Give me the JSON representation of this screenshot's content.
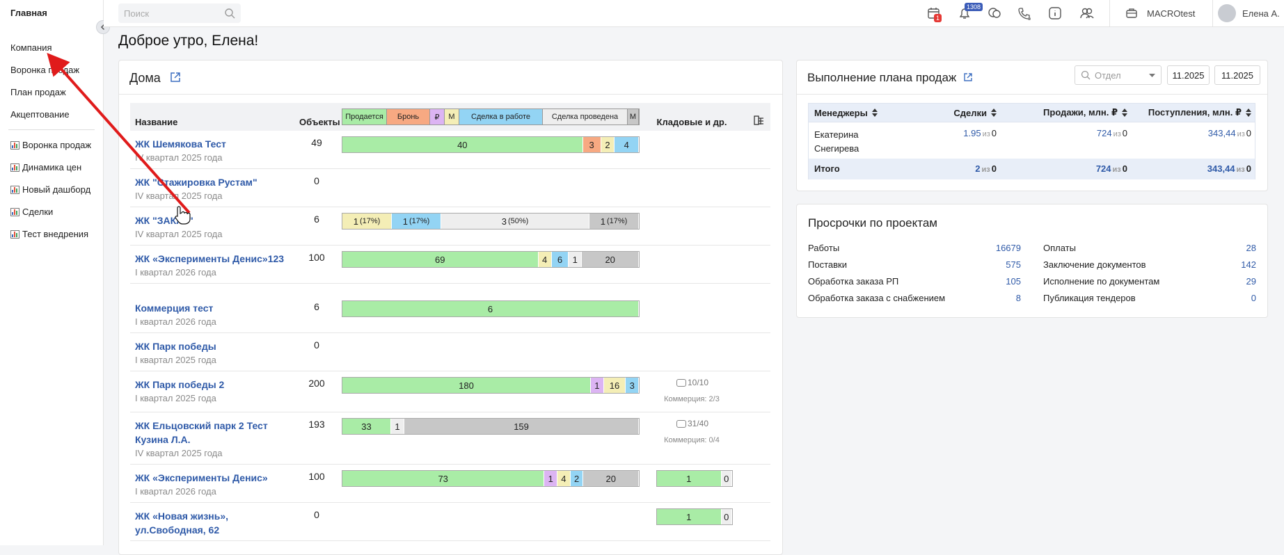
{
  "sidebar": {
    "home": "Главная",
    "menu": [
      "Компания",
      "Воронка продаж",
      "План продаж",
      "Акцептование"
    ],
    "reports": [
      "Воронка продаж",
      "Динамика цен",
      "Новый дашборд",
      "Сделки",
      "Тест внедрения"
    ]
  },
  "topbar": {
    "search": "Поиск",
    "calendar_badge": 1,
    "bell_badge": 1308,
    "company": "MACROtest",
    "user": "Елена А."
  },
  "greeting": "Доброе утро, Елена!",
  "houses": {
    "title": "Дома",
    "col_name": "Название",
    "col_objects": "Объекты",
    "col_storage": "Кладовые и др.",
    "legend": [
      {
        "name": "Продается",
        "color": "#a9eca6"
      },
      {
        "name": "Бронь",
        "color": "#f7a982"
      },
      {
        "name": "₽",
        "color": "#dcb4f3"
      },
      {
        "name": "М",
        "color": "#f4eeb6",
        "pattern": "hatch"
      },
      {
        "name": "Сделка в работе",
        "color": "#93d4f4"
      },
      {
        "name": "Сделка проведена",
        "color": "#eeeeee"
      },
      {
        "name": "М",
        "color": "#c7c7c7",
        "pattern": "hatch"
      }
    ],
    "rows": [
      {
        "name": "ЖК Шемякова Тест",
        "period": "IV квартал 2025 года",
        "objects": 49,
        "segments": [
          {
            "k": 0,
            "value": 40
          },
          {
            "k": 1,
            "value": 3
          },
          {
            "k": 3,
            "value": 2
          },
          {
            "k": 4,
            "value": 4
          }
        ]
      },
      {
        "name": "ЖК \"Стажировка Рустам\"",
        "period": "IV квартал 2025 года",
        "objects": 0
      },
      {
        "name": "ЖК \"ЗАКАТ\"",
        "period": "IV квартал 2025 года",
        "objects": 6,
        "segments": [
          {
            "k": 3,
            "value": 1,
            "share": "(17%)"
          },
          {
            "k": 4,
            "value": 1,
            "share": "(17%)"
          },
          {
            "k": 5,
            "value": 3,
            "share": "(50%)"
          },
          {
            "k": 6,
            "value": 1,
            "share": "(17%)"
          }
        ]
      },
      {
        "name": "ЖК «Эксперименты Денис»123",
        "period": "I квартал 2026 года",
        "objects": 100,
        "segments": [
          {
            "k": 0,
            "value": 69
          },
          {
            "k": 3,
            "value": 4
          },
          {
            "k": 4,
            "value": 6
          },
          {
            "k": 5,
            "value": 1
          },
          {
            "k": 6,
            "value": 20
          }
        ]
      },
      {
        "name": "Коммерция тест",
        "period": "I квартал 2026 года",
        "objects": 6,
        "segments": [
          {
            "k": 0,
            "value": 6
          }
        ]
      },
      {
        "name": "ЖК Парк победы",
        "period": "I квартал 2025 года",
        "objects": 0
      },
      {
        "name": "ЖК Парк победы 2",
        "period": "I квартал 2025 года",
        "objects": 200,
        "segments": [
          {
            "k": 0,
            "value": 180
          },
          {
            "k": 2,
            "value": 1
          },
          {
            "k": 3,
            "value": 16
          },
          {
            "k": 4,
            "value": 3
          }
        ],
        "parking": "10/10",
        "commerce": "Коммерция: 2/3"
      },
      {
        "name": "ЖК Ельцовский парк 2 Тест Кузина Л.А.",
        "period": "IV квартал 2025 года",
        "objects": 193,
        "segments": [
          {
            "k": 0,
            "value": 33
          },
          {
            "k": 5,
            "value": 1
          },
          {
            "k": 6,
            "value": 159
          }
        ],
        "parking": "31/40",
        "commerce": "Коммерция: 0/4"
      },
      {
        "name": "ЖК «Эксперименты Денис»",
        "period": "I квартал 2026 года",
        "objects": 100,
        "segments": [
          {
            "k": 0,
            "value": 73
          },
          {
            "k": 2,
            "value": 1
          },
          {
            "k": 3,
            "value": 4
          },
          {
            "k": 4,
            "value": 2
          },
          {
            "k": 6,
            "value": 20
          }
        ],
        "storage": [
          {
            "k": 0,
            "value": 1
          },
          {
            "k": 5,
            "value": 0
          }
        ]
      },
      {
        "name": "ЖК «Новая жизнь», ул.Свободная, 62",
        "objects": 0,
        "storage": [
          {
            "k": 0,
            "value": 1
          },
          {
            "k": 5,
            "value": 0
          }
        ]
      }
    ]
  },
  "plan": {
    "title": "Выполнение плана продаж",
    "filter": "Отдел",
    "date_from": "11.2025",
    "date_to": "11.2025",
    "of": "из",
    "headers": [
      "Менеджеры",
      "Сделки",
      "Продажи, млн. ₽",
      "Поступления, млн. ₽"
    ],
    "rows": [
      {
        "manager": "Екатерина Снегирева",
        "deals": 1.95,
        "deals_plan": 0,
        "sales": 724,
        "sales_plan": 0,
        "income": "343,44",
        "income_plan": 0
      }
    ],
    "total": {
      "label": "Итого",
      "deals": 2,
      "deals_plan": 0,
      "sales": 724,
      "sales_plan": 0,
      "income": "343,44",
      "income_plan": 0
    }
  },
  "overdue": {
    "title": "Просрочки по проектам",
    "left": [
      {
        "label": "Работы",
        "value": 16679
      },
      {
        "label": "Поставки",
        "value": 575
      },
      {
        "label": "Обработка заказа РП",
        "value": 105
      },
      {
        "label": "Обработка заказа с снабжением",
        "value": 8
      }
    ],
    "right": [
      {
        "label": "Оплаты",
        "value": 28
      },
      {
        "label": "Заключение документов",
        "value": 142
      },
      {
        "label": "Исполнение по документам",
        "value": 29
      },
      {
        "label": "Публикация тендеров",
        "value": 0
      }
    ]
  }
}
